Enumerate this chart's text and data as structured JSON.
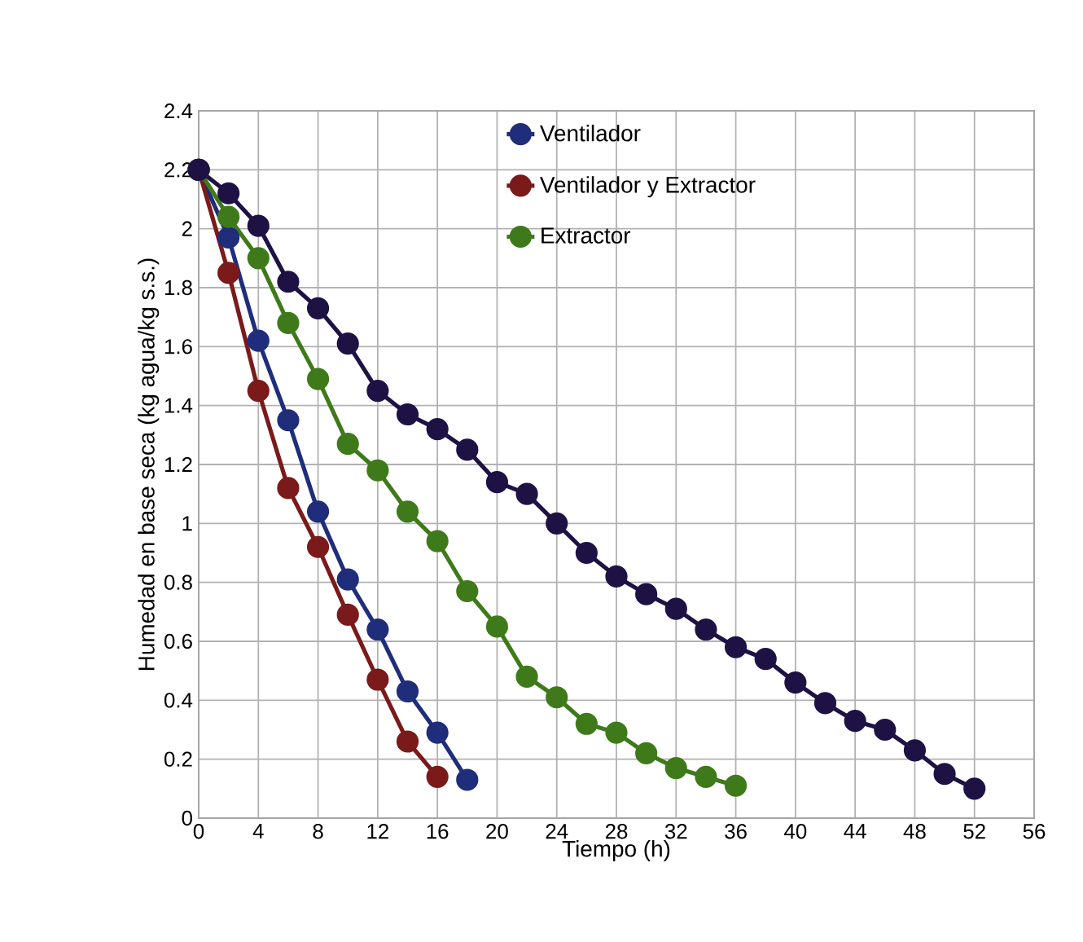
{
  "chart_data": {
    "type": "line",
    "xlabel": "Tiempo (h)",
    "ylabel": "Humedad en base seca (kg agua/kg s.s.)",
    "xlim": [
      0,
      56
    ],
    "xticks": [
      0,
      4,
      8,
      12,
      16,
      20,
      24,
      28,
      32,
      36,
      40,
      44,
      48,
      52,
      56
    ],
    "ylim": [
      0,
      2.4
    ],
    "yticks": [
      0,
      0.2,
      0.4,
      0.6,
      0.8,
      1,
      1.2,
      1.4,
      1.6,
      1.8,
      2,
      2.2,
      2.4
    ],
    "grid": true,
    "legend": "top right",
    "marker": "circle",
    "line_style": "solid",
    "series": [
      {
        "name": "Ventilador",
        "color": "#1f2d7a",
        "x": [
          0,
          2,
          4,
          6,
          8,
          10,
          12,
          14,
          16,
          18
        ],
        "values": [
          2.2,
          1.97,
          1.62,
          1.35,
          1.04,
          0.81,
          0.64,
          0.43,
          0.29,
          0.13
        ]
      },
      {
        "name": "Ventilador y Extractor",
        "color": "#7a1a1a",
        "x": [
          0,
          2,
          4,
          6,
          8,
          10,
          12,
          14,
          16
        ],
        "values": [
          2.2,
          1.85,
          1.45,
          1.12,
          0.92,
          0.69,
          0.47,
          0.26,
          0.14
        ]
      },
      {
        "name": "Extractor",
        "color": "#3f7a1a",
        "x": [
          0,
          2,
          4,
          6,
          8,
          10,
          12,
          14,
          16,
          18,
          20,
          22,
          24,
          26,
          28,
          30,
          32,
          34,
          36
        ],
        "values": [
          2.2,
          2.04,
          1.9,
          1.68,
          1.49,
          1.27,
          1.18,
          1.04,
          0.94,
          0.77,
          0.65,
          0.48,
          0.41,
          0.32,
          0.29,
          0.22,
          0.17,
          0.14,
          0.11
        ]
      },
      {
        "color": "#1e1245",
        "x": [
          0,
          2,
          4,
          6,
          8,
          10,
          12,
          14,
          16,
          18,
          20,
          22,
          24,
          26,
          28,
          30,
          32,
          34,
          36,
          38,
          40,
          42,
          44,
          46,
          48,
          50,
          52
        ],
        "values": [
          2.2,
          2.12,
          2.01,
          1.82,
          1.73,
          1.61,
          1.45,
          1.37,
          1.32,
          1.25,
          1.14,
          1.1,
          1.0,
          0.9,
          0.82,
          0.76,
          0.71,
          0.64,
          0.58,
          0.54,
          0.46,
          0.39,
          0.33,
          0.3,
          0.23,
          0.15,
          0.1
        ]
      }
    ]
  }
}
